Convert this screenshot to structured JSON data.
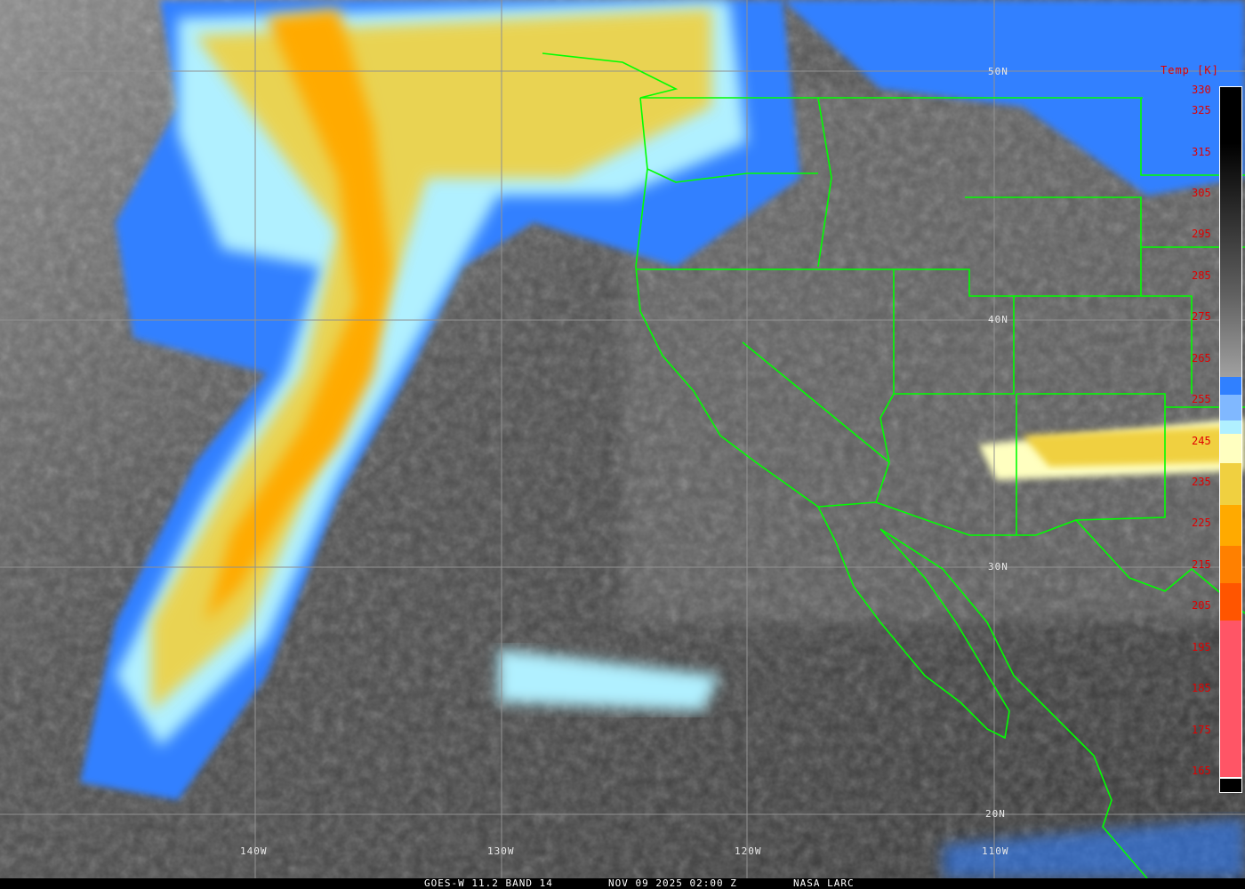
{
  "caption": {
    "satellite_band": "GOES-W 11.2 BAND 14",
    "datetime": "NOV 09 2025 02:00 Z",
    "source": "NASA LARC"
  },
  "grid_labels": {
    "lat": [
      "50N",
      "40N",
      "30N",
      "20N"
    ],
    "lon": [
      "140W",
      "130W",
      "120W",
      "110W"
    ]
  },
  "legend": {
    "title": "Temp [K]",
    "ticks": [
      "330",
      "325",
      "315",
      "305",
      "295",
      "285",
      "275",
      "265",
      "255",
      "245",
      "235",
      "225",
      "215",
      "205",
      "195",
      "185",
      "175",
      "165"
    ],
    "range_k": [
      165,
      330
    ],
    "colors": {
      "cold_pink": "#ff5566",
      "red_orange": "#ff5500",
      "dark_orange": "#ff8000",
      "orange": "#ffaa00",
      "yellow": "#f0d040",
      "cream": "#ffffc0",
      "cyan": "#b0f0ff",
      "light_blue": "#80b8ff",
      "blue": "#3080ff",
      "warm_gray_to_black": "#000000"
    }
  },
  "colors": {
    "borders": "#00ff00",
    "gridlines": "#909090"
  }
}
